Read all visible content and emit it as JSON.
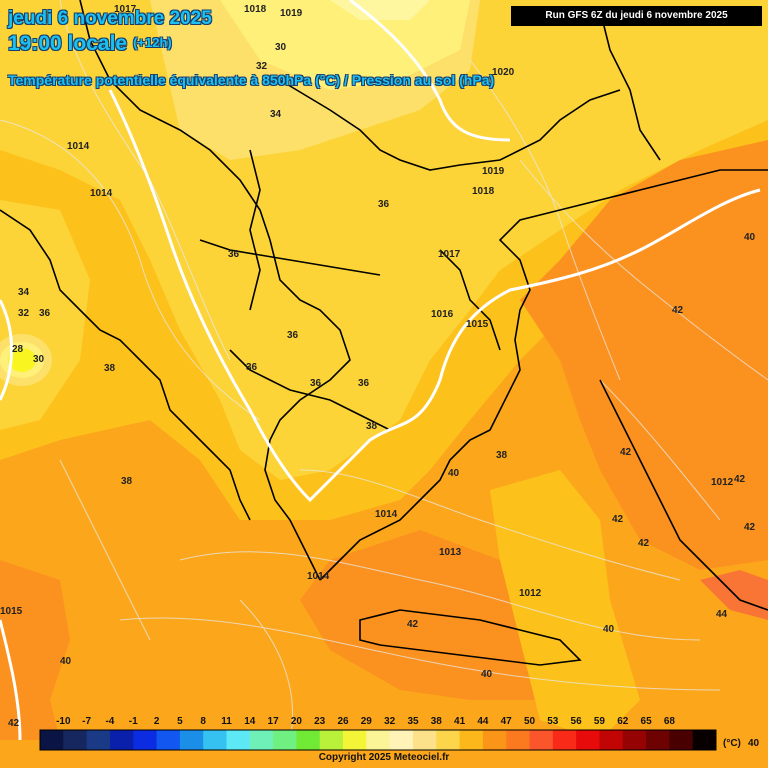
{
  "header": {
    "date": "jeudi 6 novembre 2025",
    "time": "19:00 locale",
    "offset": "(+12h)",
    "subtitle": "Température potentielle équivalente à 850hPa (°C) / Pression au sol (hPa)"
  },
  "run_box": "Run GFS 6Z du jeudi 6 novembre 2025",
  "copyright": "Copyright 2025 Meteociel.fr",
  "scale": {
    "unit": "(°C)",
    "ticks": [
      "-10",
      "-7",
      "-4",
      "-1",
      "2",
      "5",
      "8",
      "11",
      "14",
      "17",
      "20",
      "23",
      "26",
      "29",
      "32",
      "35",
      "38",
      "41",
      "44",
      "47",
      "50",
      "53",
      "56",
      "59",
      "62",
      "65",
      "68"
    ],
    "colors": [
      "#0b1545",
      "#15275e",
      "#1b3a86",
      "#0a1faa",
      "#0b2ce0",
      "#1157f0",
      "#1b8fe8",
      "#35c2f0",
      "#5ce8f5",
      "#6ff0b8",
      "#6ff080",
      "#70ea35",
      "#b8f03a",
      "#f5f538",
      "#fcf598",
      "#fff3b8",
      "#fde08a",
      "#fcd54a",
      "#fcb81b",
      "#fa9518",
      "#fb7a1f",
      "#fb552c",
      "#f92b18",
      "#e80b0b",
      "#c10505",
      "#960303",
      "#6e0101",
      "#480000",
      "#080000"
    ]
  },
  "colors": {
    "band_28": "#f8f520",
    "band_32": "#fff07a",
    "band_34": "#fde06a",
    "band_36": "#fcd438",
    "band_38": "#fcc21b",
    "band_40": "#fca71b",
    "band_42": "#fb921f",
    "band_44": "#f97535"
  },
  "temperature_labels": [
    "34",
    "36",
    "36",
    "36",
    "36",
    "36",
    "36",
    "38",
    "38",
    "38",
    "38",
    "40",
    "42",
    "42",
    "42",
    "42",
    "42",
    "42",
    "42",
    "44",
    "40",
    "40",
    "40",
    "28",
    "30",
    "32",
    "34",
    "36",
    "32",
    "30",
    "42",
    "40"
  ],
  "pressure_labels": [
    "1017",
    "1018",
    "1019",
    "1014",
    "1014",
    "1020",
    "1019",
    "1018",
    "1017",
    "1016",
    "1015",
    "1014",
    "1013",
    "1014",
    "1012",
    "1012",
    "1015"
  ]
}
